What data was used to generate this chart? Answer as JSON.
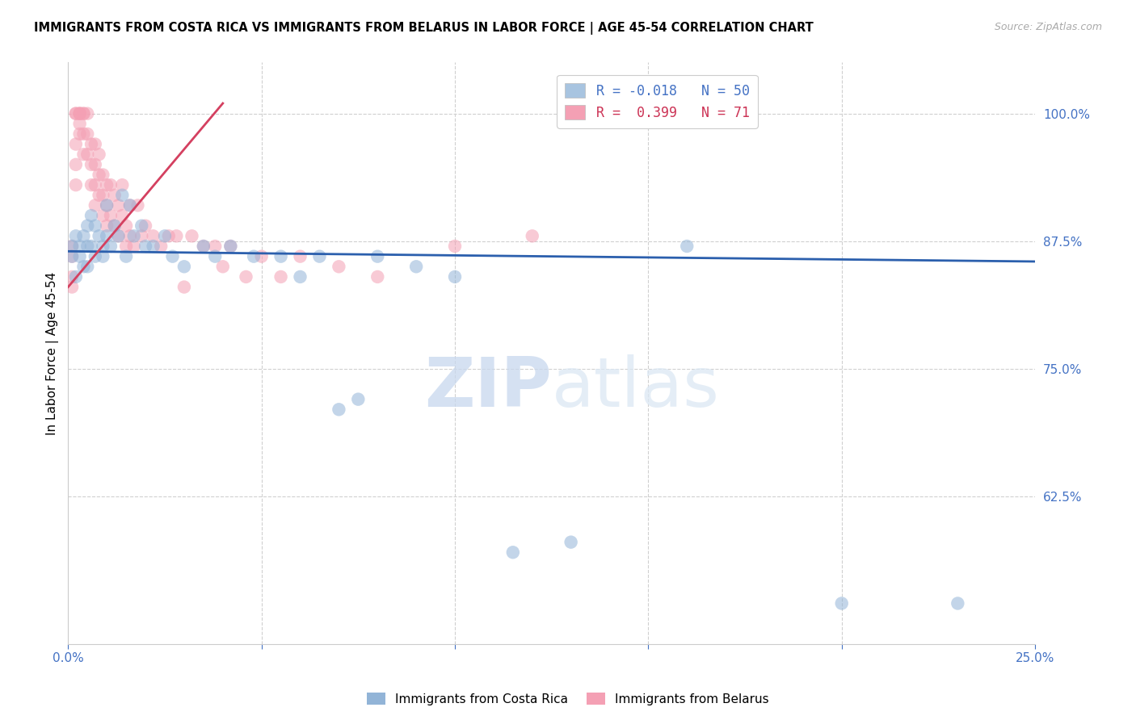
{
  "title": "IMMIGRANTS FROM COSTA RICA VS IMMIGRANTS FROM BELARUS IN LABOR FORCE | AGE 45-54 CORRELATION CHART",
  "source_text": "Source: ZipAtlas.com",
  "ylabel": "In Labor Force | Age 45-54",
  "xlim": [
    0.0,
    0.25
  ],
  "ylim": [
    0.48,
    1.05
  ],
  "yticks_right": [
    1.0,
    0.875,
    0.75,
    0.625
  ],
  "ytick_labels_right": [
    "100.0%",
    "87.5%",
    "75.0%",
    "62.5%"
  ],
  "watermark_zip": "ZIP",
  "watermark_atlas": "atlas",
  "axis_color": "#4472c4",
  "blue_color": "#92b4d7",
  "pink_color": "#f4a0b4",
  "blue_line_color": "#2b5fad",
  "pink_line_color": "#d44060",
  "blue_line_x": [
    0.0,
    0.25
  ],
  "blue_line_y": [
    0.865,
    0.855
  ],
  "pink_line_x": [
    0.0,
    0.04
  ],
  "pink_line_y": [
    0.83,
    1.01
  ],
  "costa_rica_x": [
    0.001,
    0.001,
    0.002,
    0.002,
    0.003,
    0.003,
    0.004,
    0.004,
    0.005,
    0.005,
    0.005,
    0.006,
    0.006,
    0.007,
    0.007,
    0.008,
    0.009,
    0.009,
    0.01,
    0.01,
    0.011,
    0.012,
    0.013,
    0.014,
    0.015,
    0.016,
    0.017,
    0.019,
    0.02,
    0.022,
    0.025,
    0.027,
    0.03,
    0.035,
    0.038,
    0.042,
    0.048,
    0.055,
    0.06,
    0.065,
    0.07,
    0.075,
    0.08,
    0.09,
    0.1,
    0.115,
    0.13,
    0.16,
    0.2,
    0.23
  ],
  "costa_rica_y": [
    0.87,
    0.86,
    0.88,
    0.84,
    0.87,
    0.86,
    0.88,
    0.85,
    0.89,
    0.87,
    0.85,
    0.9,
    0.87,
    0.89,
    0.86,
    0.88,
    0.87,
    0.86,
    0.91,
    0.88,
    0.87,
    0.89,
    0.88,
    0.92,
    0.86,
    0.91,
    0.88,
    0.89,
    0.87,
    0.87,
    0.88,
    0.86,
    0.85,
    0.87,
    0.86,
    0.87,
    0.86,
    0.86,
    0.84,
    0.86,
    0.71,
    0.72,
    0.86,
    0.85,
    0.84,
    0.57,
    0.58,
    0.87,
    0.52,
    0.52
  ],
  "belarus_x": [
    0.001,
    0.001,
    0.001,
    0.001,
    0.002,
    0.002,
    0.002,
    0.002,
    0.002,
    0.003,
    0.003,
    0.003,
    0.003,
    0.003,
    0.004,
    0.004,
    0.004,
    0.004,
    0.005,
    0.005,
    0.005,
    0.006,
    0.006,
    0.006,
    0.007,
    0.007,
    0.007,
    0.007,
    0.008,
    0.008,
    0.008,
    0.009,
    0.009,
    0.009,
    0.01,
    0.01,
    0.01,
    0.011,
    0.011,
    0.012,
    0.012,
    0.013,
    0.013,
    0.014,
    0.014,
    0.015,
    0.015,
    0.016,
    0.016,
    0.017,
    0.018,
    0.019,
    0.02,
    0.022,
    0.024,
    0.026,
    0.028,
    0.03,
    0.032,
    0.035,
    0.038,
    0.04,
    0.042,
    0.046,
    0.05,
    0.055,
    0.06,
    0.07,
    0.08,
    0.1,
    0.12
  ],
  "belarus_y": [
    0.87,
    0.86,
    0.84,
    0.83,
    1.0,
    1.0,
    0.97,
    0.95,
    0.93,
    1.0,
    1.0,
    1.0,
    0.99,
    0.98,
    1.0,
    1.0,
    0.98,
    0.96,
    1.0,
    0.98,
    0.96,
    0.97,
    0.95,
    0.93,
    0.97,
    0.95,
    0.93,
    0.91,
    0.96,
    0.94,
    0.92,
    0.94,
    0.92,
    0.9,
    0.93,
    0.91,
    0.89,
    0.93,
    0.9,
    0.92,
    0.89,
    0.91,
    0.88,
    0.9,
    0.93,
    0.89,
    0.87,
    0.91,
    0.88,
    0.87,
    0.91,
    0.88,
    0.89,
    0.88,
    0.87,
    0.88,
    0.88,
    0.83,
    0.88,
    0.87,
    0.87,
    0.85,
    0.87,
    0.84,
    0.86,
    0.84,
    0.86,
    0.85,
    0.84,
    0.87,
    0.88
  ]
}
